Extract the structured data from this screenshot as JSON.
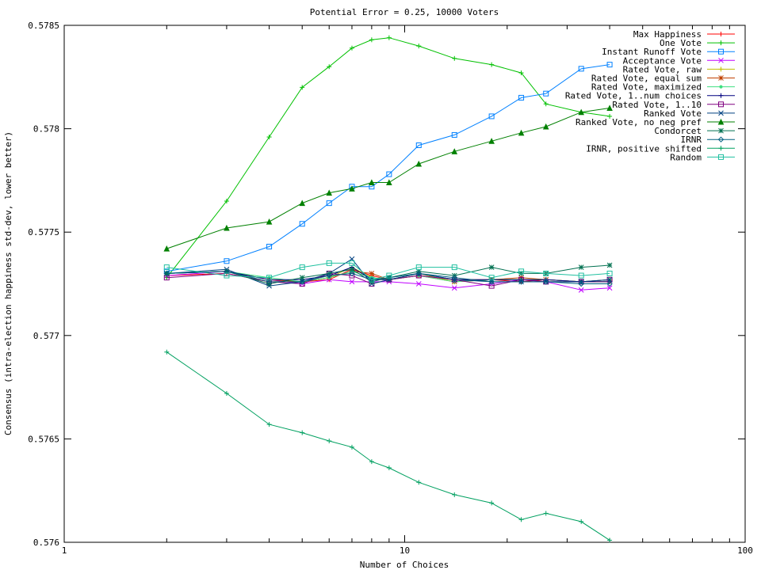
{
  "chart_data": {
    "type": "line",
    "title": "Potential Error = 0.25, 10000 Voters",
    "xlabel": "Number of Choices",
    "ylabel": "Consensus (intra-election happiness std-dev, lower better)",
    "x_scale": "log",
    "xlim": [
      1,
      100
    ],
    "ylim": [
      0.576,
      0.5785
    ],
    "xticks": [
      1,
      10,
      100
    ],
    "xtick_labels": [
      "1",
      "10",
      "100"
    ],
    "yticks": [
      0.576,
      0.5765,
      0.577,
      0.5775,
      0.578,
      0.5785
    ],
    "ytick_labels": [
      "0.576",
      "0.5765",
      "0.577",
      "0.5775",
      "0.578",
      "0.5785"
    ],
    "grid": false,
    "legend_position": "top-right",
    "x": [
      2,
      3,
      4,
      5,
      6,
      7,
      8,
      9,
      11,
      14,
      18,
      22,
      26,
      33,
      40
    ],
    "series": [
      {
        "name": "Max Happiness",
        "color": "#ff0000",
        "marker": "plus",
        "values": [
          0.57729,
          0.5773,
          0.57726,
          0.57726,
          0.57727,
          0.57732,
          0.57729,
          0.57727,
          0.57729,
          0.57727,
          0.57727,
          0.57726,
          0.57727,
          0.57726,
          0.57726
        ]
      },
      {
        "name": "One Vote",
        "color": "#00c000",
        "marker": "plus",
        "values": [
          0.57728,
          0.57765,
          0.57796,
          0.5782,
          0.5783,
          0.57839,
          0.57843,
          0.57844,
          0.5784,
          0.57834,
          0.57831,
          0.57827,
          0.57812,
          0.57808,
          0.57806
        ]
      },
      {
        "name": "Instant Runoff Vote",
        "color": "#0080ff",
        "marker": "box",
        "values": [
          0.57731,
          0.57736,
          0.57743,
          0.57754,
          0.57764,
          0.57772,
          0.57772,
          0.57778,
          0.57792,
          0.57797,
          0.57806,
          0.57815,
          0.57817,
          0.57829,
          0.57831
        ]
      },
      {
        "name": "Acceptance Vote",
        "color": "#c000ff",
        "marker": "x",
        "values": [
          0.57729,
          0.57731,
          0.57727,
          0.57725,
          0.57727,
          0.57726,
          0.57726,
          0.57726,
          0.57725,
          0.57723,
          0.57725,
          0.57727,
          0.57726,
          0.57722,
          0.57723
        ]
      },
      {
        "name": "Rated Vote, raw",
        "color": "#c0c000",
        "marker": "plus",
        "values": [
          0.5773,
          0.57731,
          0.57727,
          0.57726,
          0.57728,
          0.57733,
          0.57728,
          0.57727,
          0.5773,
          0.57726,
          0.57727,
          0.57727,
          0.57727,
          0.57726,
          0.57727
        ]
      },
      {
        "name": "Rated Vote, equal sum",
        "color": "#c04000",
        "marker": "star",
        "values": [
          0.5773,
          0.57731,
          0.57727,
          0.57726,
          0.57728,
          0.57731,
          0.5773,
          0.57727,
          0.57729,
          0.57726,
          0.57727,
          0.57728,
          0.57727,
          0.57726,
          0.57726
        ]
      },
      {
        "name": "Rated Vote, maximized",
        "color": "#40e080",
        "marker": "dot",
        "values": [
          0.5773,
          0.57731,
          0.57728,
          0.57726,
          0.57728,
          0.57731,
          0.57728,
          0.57727,
          0.57729,
          0.57726,
          0.57727,
          0.57727,
          0.57727,
          0.57726,
          0.57727
        ]
      },
      {
        "name": "Rated Vote, 1..num choices",
        "color": "#000080",
        "marker": "plus",
        "values": [
          0.5773,
          0.57731,
          0.57727,
          0.57727,
          0.57729,
          0.57733,
          0.57727,
          0.57727,
          0.5773,
          0.57727,
          0.57727,
          0.57727,
          0.57727,
          0.57726,
          0.57726
        ]
      },
      {
        "name": "Rated Vote, 1..10",
        "color": "#800080",
        "marker": "box",
        "values": [
          0.57728,
          0.5773,
          0.57726,
          0.57725,
          0.5773,
          0.57729,
          0.57725,
          0.57727,
          0.57729,
          0.57727,
          0.57724,
          0.57727,
          0.57726,
          0.57726,
          0.57727
        ]
      },
      {
        "name": "Ranked Vote",
        "color": "#004080",
        "marker": "x",
        "values": [
          0.5773,
          0.57732,
          0.57724,
          0.57726,
          0.5773,
          0.57737,
          0.57725,
          0.57727,
          0.5773,
          0.57727,
          0.57726,
          0.57726,
          0.57726,
          0.57726,
          0.57727
        ]
      },
      {
        "name": "Ranked Vote, no neg pref",
        "color": "#008000",
        "marker": "triangle",
        "values": [
          0.57742,
          0.57752,
          0.57755,
          0.57764,
          0.57769,
          0.57771,
          0.57774,
          0.57774,
          0.57783,
          0.57789,
          0.57794,
          0.57798,
          0.57801,
          0.57808,
          0.5781
        ]
      },
      {
        "name": "Condorcet",
        "color": "#007050",
        "marker": "star",
        "values": [
          0.5773,
          0.57731,
          0.57725,
          0.57728,
          0.5773,
          0.57732,
          0.57726,
          0.57728,
          0.57731,
          0.57729,
          0.57733,
          0.5773,
          0.5773,
          0.57733,
          0.57734
        ]
      },
      {
        "name": "IRNR",
        "color": "#006080",
        "marker": "diamond",
        "values": [
          0.5773,
          0.57731,
          0.57726,
          0.57726,
          0.57729,
          0.5773,
          0.57727,
          0.57728,
          0.5773,
          0.57728,
          0.57726,
          0.57726,
          0.57726,
          0.57725,
          0.57725
        ]
      },
      {
        "name": "IRNR, positive shifted",
        "color": "#00a060",
        "marker": "plus",
        "values": [
          0.57692,
          0.57672,
          0.57657,
          0.57653,
          0.57649,
          0.57646,
          0.57639,
          0.57636,
          0.57629,
          0.57623,
          0.57619,
          0.57611,
          0.57614,
          0.5761,
          0.57601
        ]
      },
      {
        "name": "Random",
        "color": "#20c0a0",
        "marker": "box",
        "values": [
          0.57733,
          0.57729,
          0.57728,
          0.57733,
          0.57735,
          0.57735,
          0.57727,
          0.57729,
          0.57733,
          0.57733,
          0.57728,
          0.57731,
          0.5773,
          0.57729,
          0.5773
        ]
      }
    ]
  }
}
